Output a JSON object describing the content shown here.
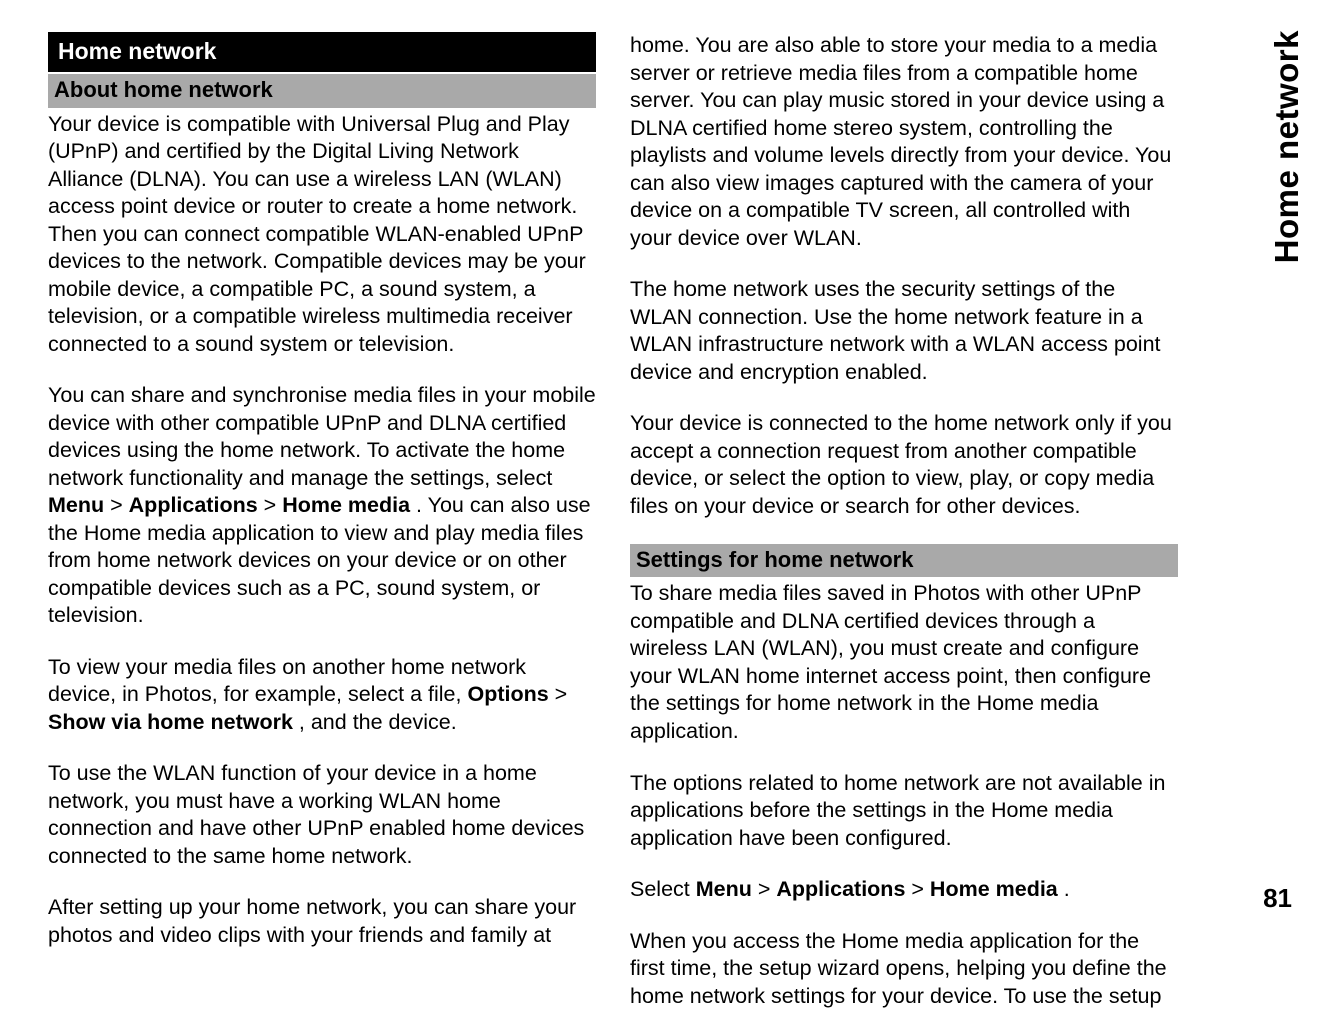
{
  "sideTab": "Home network",
  "pageNumber": "81",
  "left": {
    "sectionTitle": "Home network",
    "sub1": "About home network",
    "p1": "Your device is compatible with Universal Plug and Play (UPnP) and certified by the Digital Living Network Alliance (DLNA). You can use a wireless LAN (WLAN) access point device or router to create a home network. Then you can connect compatible WLAN-enabled UPnP devices to the network. Compatible devices may be your mobile device, a compatible PC, a sound system, a television, or a compatible wireless multimedia receiver connected to a sound system or television.",
    "p2a": "You can share and synchronise media files in your mobile device with other compatible UPnP and DLNA certified devices using the home network. To activate the home network functionality and manage the settings, select ",
    "p2b1": "Menu",
    "p2gt1": " > ",
    "p2b2": "Applications",
    "p2gt2": " > ",
    "p2b3": "Home media",
    "p2c": ". You can also use the Home media application to view and play media files from home network devices on your device or on other compatible devices such as a PC, sound system, or television.",
    "p3a": "To view your media files on another home network device, in Photos, for example, select a file, ",
    "p3b1": "Options",
    "p3gt": " > ",
    "p3b2": "Show via home network",
    "p3c": ", and the device.",
    "p4": "To use the WLAN function of your device in a home network, you must have a working WLAN home connection and have other UPnP enabled home devices connected to the same home network.",
    "p5": "After setting up your home network, you can share your photos and video clips with your friends and family at"
  },
  "right": {
    "p1": "home. You are also able to store your media to a media server or retrieve media files from a compatible home server. You can play music stored in your device using a DLNA certified home stereo system, controlling the playlists and volume levels directly from your device. You can also view images captured with the camera of your device on a compatible TV screen, all controlled with your device over WLAN.",
    "p2": "The home network uses the security settings of the WLAN connection. Use the home network feature in a WLAN infrastructure network with a WLAN access point device and encryption enabled.",
    "p3": "Your device is connected to the home network only if you accept a connection request from another compatible device, or select the option to view, play, or copy media files on your device or search for other devices.",
    "sub2": "Settings for home network",
    "p4": "To share media files saved in Photos with other UPnP compatible and DLNA certified devices through a wireless LAN (WLAN), you must create and configure your WLAN home internet access point, then configure the settings for home network in the Home media application.",
    "p5": "The options related to home network are not available in applications before the settings in the Home media application have been configured.",
    "p6a": "Select ",
    "p6b1": "Menu",
    "p6gt1": " > ",
    "p6b2": "Applications",
    "p6gt2": " > ",
    "p6b3": "Home media",
    "p6c": ".",
    "p7": "When you access the Home media application for the first time, the setup wizard opens, helping you define the home network settings for your device. To use the setup"
  }
}
